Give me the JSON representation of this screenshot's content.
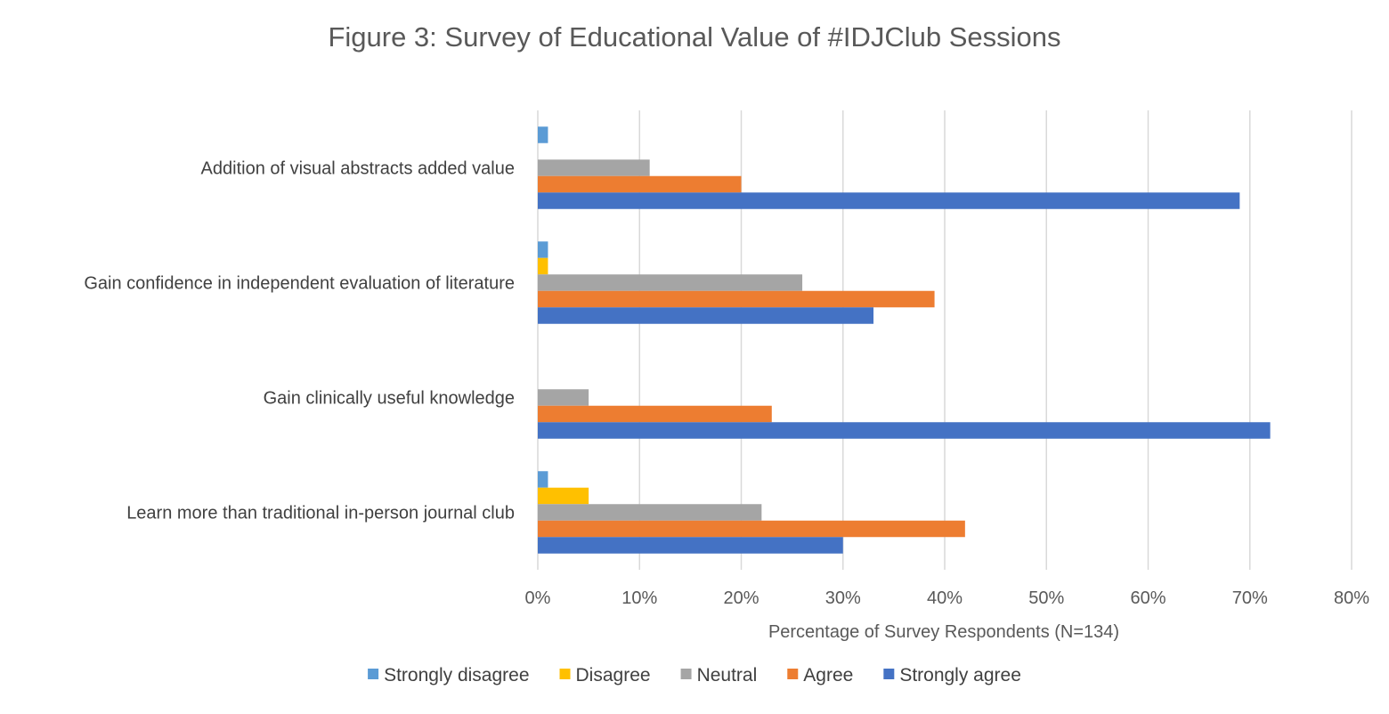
{
  "chart_data": {
    "type": "bar",
    "orientation": "horizontal",
    "title": "Figure 3: Survey of Educational Value of #IDJClub Sessions",
    "xlabel": "Percentage of Survey Respondents (N=134)",
    "ylabel": "",
    "xlim": [
      0,
      80
    ],
    "x_ticks": [
      "0%",
      "10%",
      "20%",
      "30%",
      "40%",
      "50%",
      "60%",
      "70%",
      "80%"
    ],
    "x_tick_values": [
      0,
      10,
      20,
      30,
      40,
      50,
      60,
      70,
      80
    ],
    "grid": true,
    "legend_position": "bottom",
    "categories": [
      "Addition of visual abstracts added value",
      "Gain confidence in independent evaluation of literature",
      "Gain clinically useful knowledge",
      "Learn more than traditional in-person journal club"
    ],
    "series": [
      {
        "name": "Strongly disagree",
        "color": "#5b9bd5",
        "values": [
          1,
          1,
          0,
          1
        ]
      },
      {
        "name": "Disagree",
        "color": "#ffc000",
        "values": [
          0,
          1,
          0,
          5
        ]
      },
      {
        "name": "Neutral",
        "color": "#a5a5a5",
        "values": [
          11,
          26,
          5,
          22
        ]
      },
      {
        "name": "Agree",
        "color": "#ed7d31",
        "values": [
          20,
          39,
          23,
          42
        ]
      },
      {
        "name": "Strongly agree",
        "color": "#4472c4",
        "values": [
          69,
          33,
          72,
          30
        ]
      }
    ]
  }
}
